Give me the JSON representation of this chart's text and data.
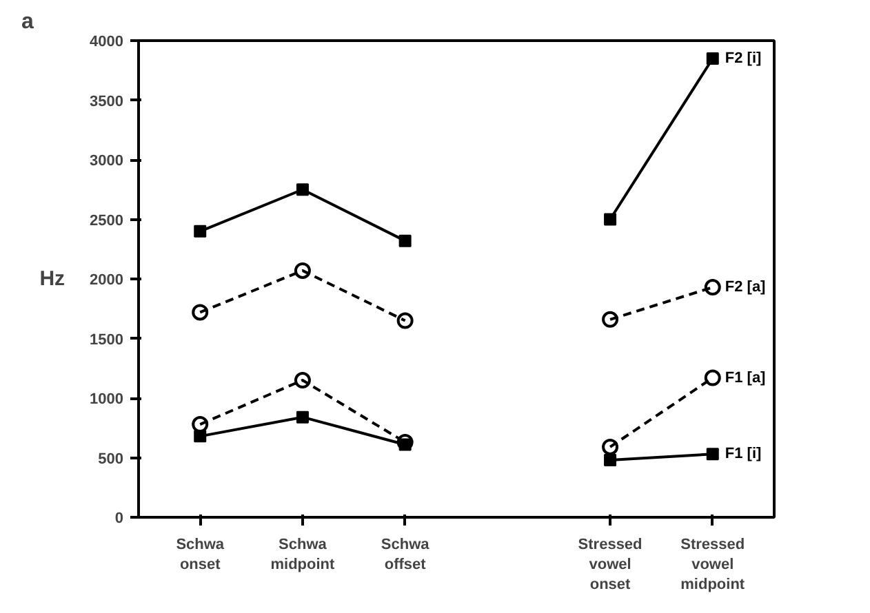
{
  "chart_data": {
    "type": "line",
    "title": "a",
    "ylabel": "Hz",
    "categories": [
      "Schwa onset",
      "Schwa midpoint",
      "Schwa offset",
      null,
      "Stressed vowel onset",
      "Stressed vowel midpoint"
    ],
    "ylim": [
      0,
      4000
    ],
    "yticks": [
      0,
      500,
      1000,
      1500,
      2000,
      2500,
      3000,
      3500,
      4000
    ],
    "grid": false,
    "series": [
      {
        "name": "F2 [i]",
        "color": "#000000",
        "marker": "square",
        "line_style": "solid",
        "values": [
          2400,
          2750,
          2320,
          null,
          2500,
          3850
        ]
      },
      {
        "name": "F2 [a]",
        "color": "#000000",
        "marker": "circle",
        "line_style": "dashed",
        "values": [
          1720,
          2070,
          1650,
          null,
          1660,
          1930
        ]
      },
      {
        "name": "F1 [a]",
        "color": "#000000",
        "marker": "circle",
        "line_style": "dashed",
        "values": [
          780,
          1150,
          630,
          null,
          590,
          1170
        ]
      },
      {
        "name": "F1 [i]",
        "color": "#000000",
        "marker": "square",
        "line_style": "solid",
        "values": [
          680,
          840,
          610,
          null,
          480,
          530
        ]
      }
    ]
  }
}
